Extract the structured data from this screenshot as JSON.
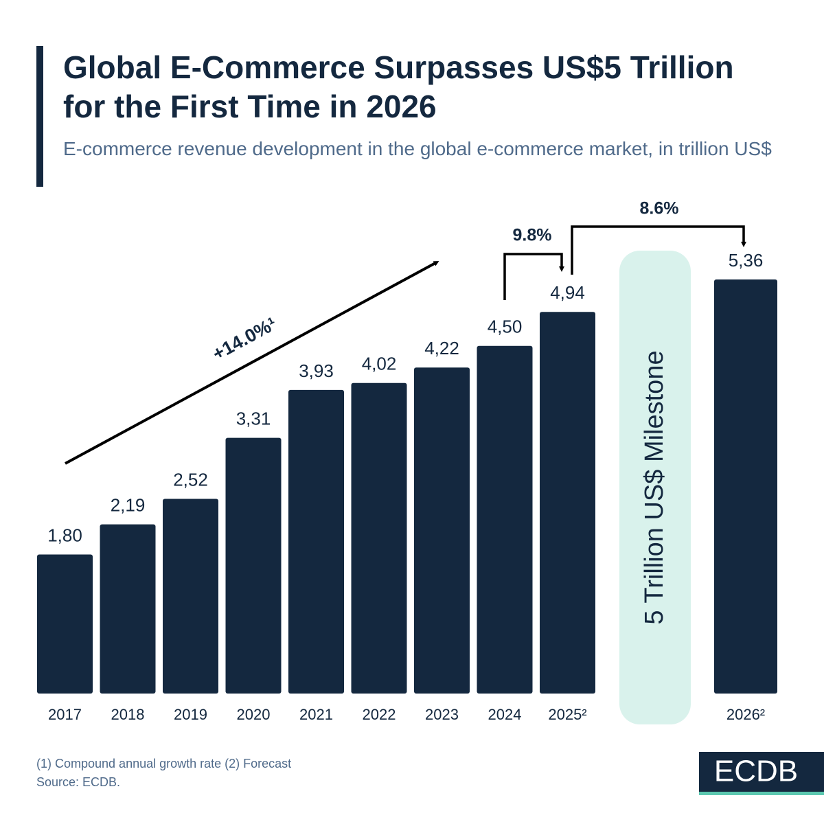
{
  "chart_data": {
    "type": "bar",
    "title": "Global E-Commerce Surpasses US$5 Trillion for the First Time in 2026",
    "subtitle": "E-commerce revenue development in the global e-commerce market, in trillion US$",
    "categories": [
      "2017",
      "2018",
      "2019",
      "2020",
      "2021",
      "2022",
      "2023",
      "2024",
      "2025²",
      "2026²"
    ],
    "values": [
      1.8,
      2.19,
      2.52,
      3.31,
      3.93,
      4.02,
      4.22,
      4.5,
      4.94,
      5.36
    ],
    "value_labels": [
      "1,80",
      "2,19",
      "2,52",
      "3,31",
      "3,93",
      "4,02",
      "4,22",
      "4,50",
      "4,94",
      "5,36"
    ],
    "color": "#14283f",
    "annotations": [
      "+14.0%¹",
      "9.8%",
      "8.6%",
      "5 Trillion US$ Milestone"
    ]
  },
  "footer": {
    "note": "(1) Compound annual growth rate (2) Forecast",
    "source": "Source: ECDB.",
    "logo": "ECDB"
  }
}
